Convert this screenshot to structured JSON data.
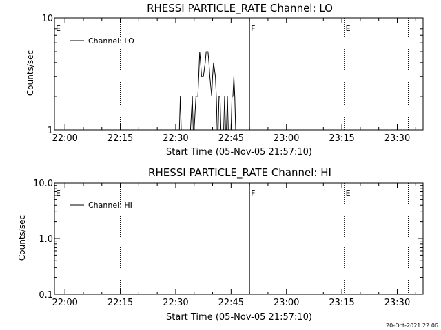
{
  "chart_data": [
    {
      "type": "line",
      "title": "RHESSI PARTICLE_RATE Channel: LO",
      "xlabel": "Start Time (05-Nov-05 21:57:10)",
      "ylabel": "Counts/sec",
      "y_scale": "log",
      "ylim": [
        1,
        10
      ],
      "y_ticks": [
        "1",
        "10"
      ],
      "xlim": [
        "21:57:10",
        "23:37:00"
      ],
      "x_ticks": [
        "22:00",
        "22:15",
        "22:30",
        "22:45",
        "23:00",
        "23:15",
        "23:30"
      ],
      "grid": false,
      "legend": {
        "position": "top-left",
        "entries": [
          "Channel: LO"
        ]
      },
      "series": [
        {
          "name": "Channel: LO",
          "x": [
            "22:31:00",
            "22:31:15",
            "22:31:30",
            "22:32:00",
            "22:33:00",
            "22:34:00",
            "22:34:30",
            "22:34:45",
            "22:35:00",
            "22:35:30",
            "22:36:00",
            "22:36:15",
            "22:36:30",
            "22:36:45",
            "22:37:00",
            "22:37:30",
            "22:38:00",
            "22:38:15",
            "22:38:45",
            "22:39:00",
            "22:39:15",
            "22:39:45",
            "22:40:00",
            "22:40:15",
            "22:40:45",
            "22:41:00",
            "22:41:15",
            "22:41:30",
            "22:41:45",
            "22:42:00",
            "22:42:15",
            "22:42:30",
            "22:42:45",
            "22:43:00",
            "22:43:15",
            "22:43:30",
            "22:43:45",
            "22:44:00",
            "22:44:15",
            "22:44:30",
            "22:44:45",
            "22:45:00",
            "22:45:15",
            "22:45:30",
            "22:45:45",
            "22:46:00",
            "22:46:15",
            "22:46:30",
            "22:47:00"
          ],
          "y": [
            1,
            2,
            1,
            1,
            1,
            1,
            2,
            1,
            1,
            2,
            2,
            3,
            5,
            4,
            3,
            3,
            4,
            5,
            5,
            4,
            3,
            2,
            3,
            4,
            3,
            2,
            1,
            1,
            2,
            2,
            1,
            1,
            1,
            1,
            2,
            1,
            1,
            2,
            1,
            1,
            1,
            1,
            2,
            2,
            3,
            2,
            1,
            1,
            1
          ]
        }
      ],
      "annotations": [
        {
          "text": "E",
          "x": "21:57:10"
        },
        {
          "text": "F",
          "x": "22:50:00"
        },
        {
          "text": "E",
          "x": "23:15:40"
        }
      ],
      "vertical_lines": [
        {
          "x": "22:15:00",
          "style": "dotted"
        },
        {
          "x": "22:50:00",
          "style": "solid"
        },
        {
          "x": "23:12:50",
          "style": "solid"
        },
        {
          "x": "23:15:40",
          "style": "dotted"
        },
        {
          "x": "23:33:00",
          "style": "dotted"
        }
      ]
    },
    {
      "type": "line",
      "title": "RHESSI PARTICLE_RATE Channel: HI",
      "xlabel": "Start Time (05-Nov-05 21:57:10)",
      "ylabel": "Counts/sec",
      "y_scale": "log",
      "ylim": [
        0.1,
        10
      ],
      "y_ticks": [
        "0.1",
        "1.0",
        "10.0"
      ],
      "xlim": [
        "21:57:10",
        "23:37:00"
      ],
      "x_ticks": [
        "22:00",
        "22:15",
        "22:30",
        "22:45",
        "23:00",
        "23:15",
        "23:30"
      ],
      "grid": false,
      "legend": {
        "position": "top-left",
        "entries": [
          "Channel: HI"
        ]
      },
      "series": [
        {
          "name": "Channel: HI",
          "x": [],
          "y": []
        }
      ],
      "annotations": [
        {
          "text": "E",
          "x": "21:57:10"
        },
        {
          "text": "F",
          "x": "22:50:00"
        },
        {
          "text": "E",
          "x": "23:15:40"
        }
      ],
      "vertical_lines": [
        {
          "x": "22:15:00",
          "style": "dotted"
        },
        {
          "x": "22:50:00",
          "style": "solid"
        },
        {
          "x": "23:12:50",
          "style": "solid"
        },
        {
          "x": "23:15:40",
          "style": "dotted"
        },
        {
          "x": "23:33:00",
          "style": "dotted"
        }
      ]
    }
  ],
  "footer": {
    "timestamp": "20-Oct-2021 22:06"
  }
}
